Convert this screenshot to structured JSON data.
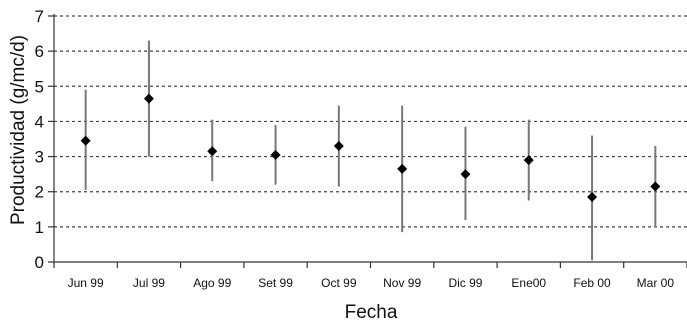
{
  "chart_data": {
    "type": "scatter",
    "xlabel": "Fecha",
    "ylabel": "Productividad (g/mc/d)",
    "ylim": [
      0,
      7
    ],
    "yticks": [
      0,
      1,
      2,
      3,
      4,
      5,
      6,
      7
    ],
    "grid": true,
    "categories": [
      "Jun 99",
      "Jul 99",
      "Ago 99",
      "Set 99",
      "Oct 99",
      "Nov 99",
      "Dic 99",
      "Ene00",
      "Feb 00",
      "Mar 00"
    ],
    "values": [
      3.45,
      4.65,
      3.15,
      3.05,
      3.3,
      2.65,
      2.5,
      2.9,
      1.85,
      2.15
    ],
    "error_low": [
      2.05,
      3.0,
      2.3,
      2.2,
      2.15,
      0.85,
      1.2,
      1.75,
      0.05,
      1.0
    ],
    "error_high": [
      4.9,
      6.3,
      4.05,
      3.9,
      4.45,
      4.45,
      3.85,
      4.05,
      3.6,
      3.3
    ],
    "marker": "diamond",
    "colors": {
      "marker": "#000000",
      "error_bar": "#777777",
      "grid": "#444444"
    }
  }
}
